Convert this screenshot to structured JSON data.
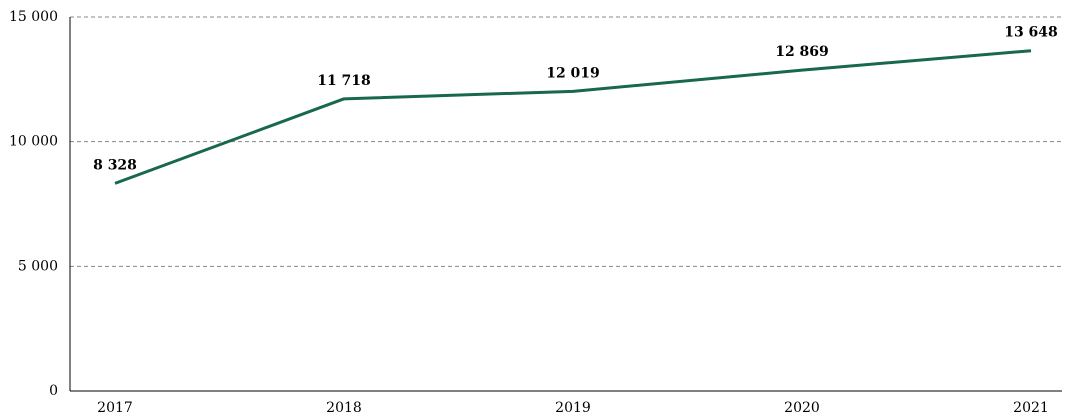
{
  "chart_data": {
    "type": "line",
    "categories": [
      "2017",
      "2018",
      "2019",
      "2020",
      "2021"
    ],
    "series": [
      {
        "color": "#17694a",
        "values": [
          8328,
          11718,
          12019,
          12869,
          13648
        ],
        "value_labels": [
          "8 328",
          "11 718",
          "12 019",
          "12 869",
          "13 648"
        ]
      }
    ],
    "ylim": [
      0,
      15000
    ],
    "yticks": [
      0,
      {
        "value": 5000,
        "label": "5 000"
      },
      {
        "value": 10000,
        "label": "10 000"
      },
      {
        "value": 15000,
        "label": "15 000"
      }
    ],
    "grid": true
  }
}
